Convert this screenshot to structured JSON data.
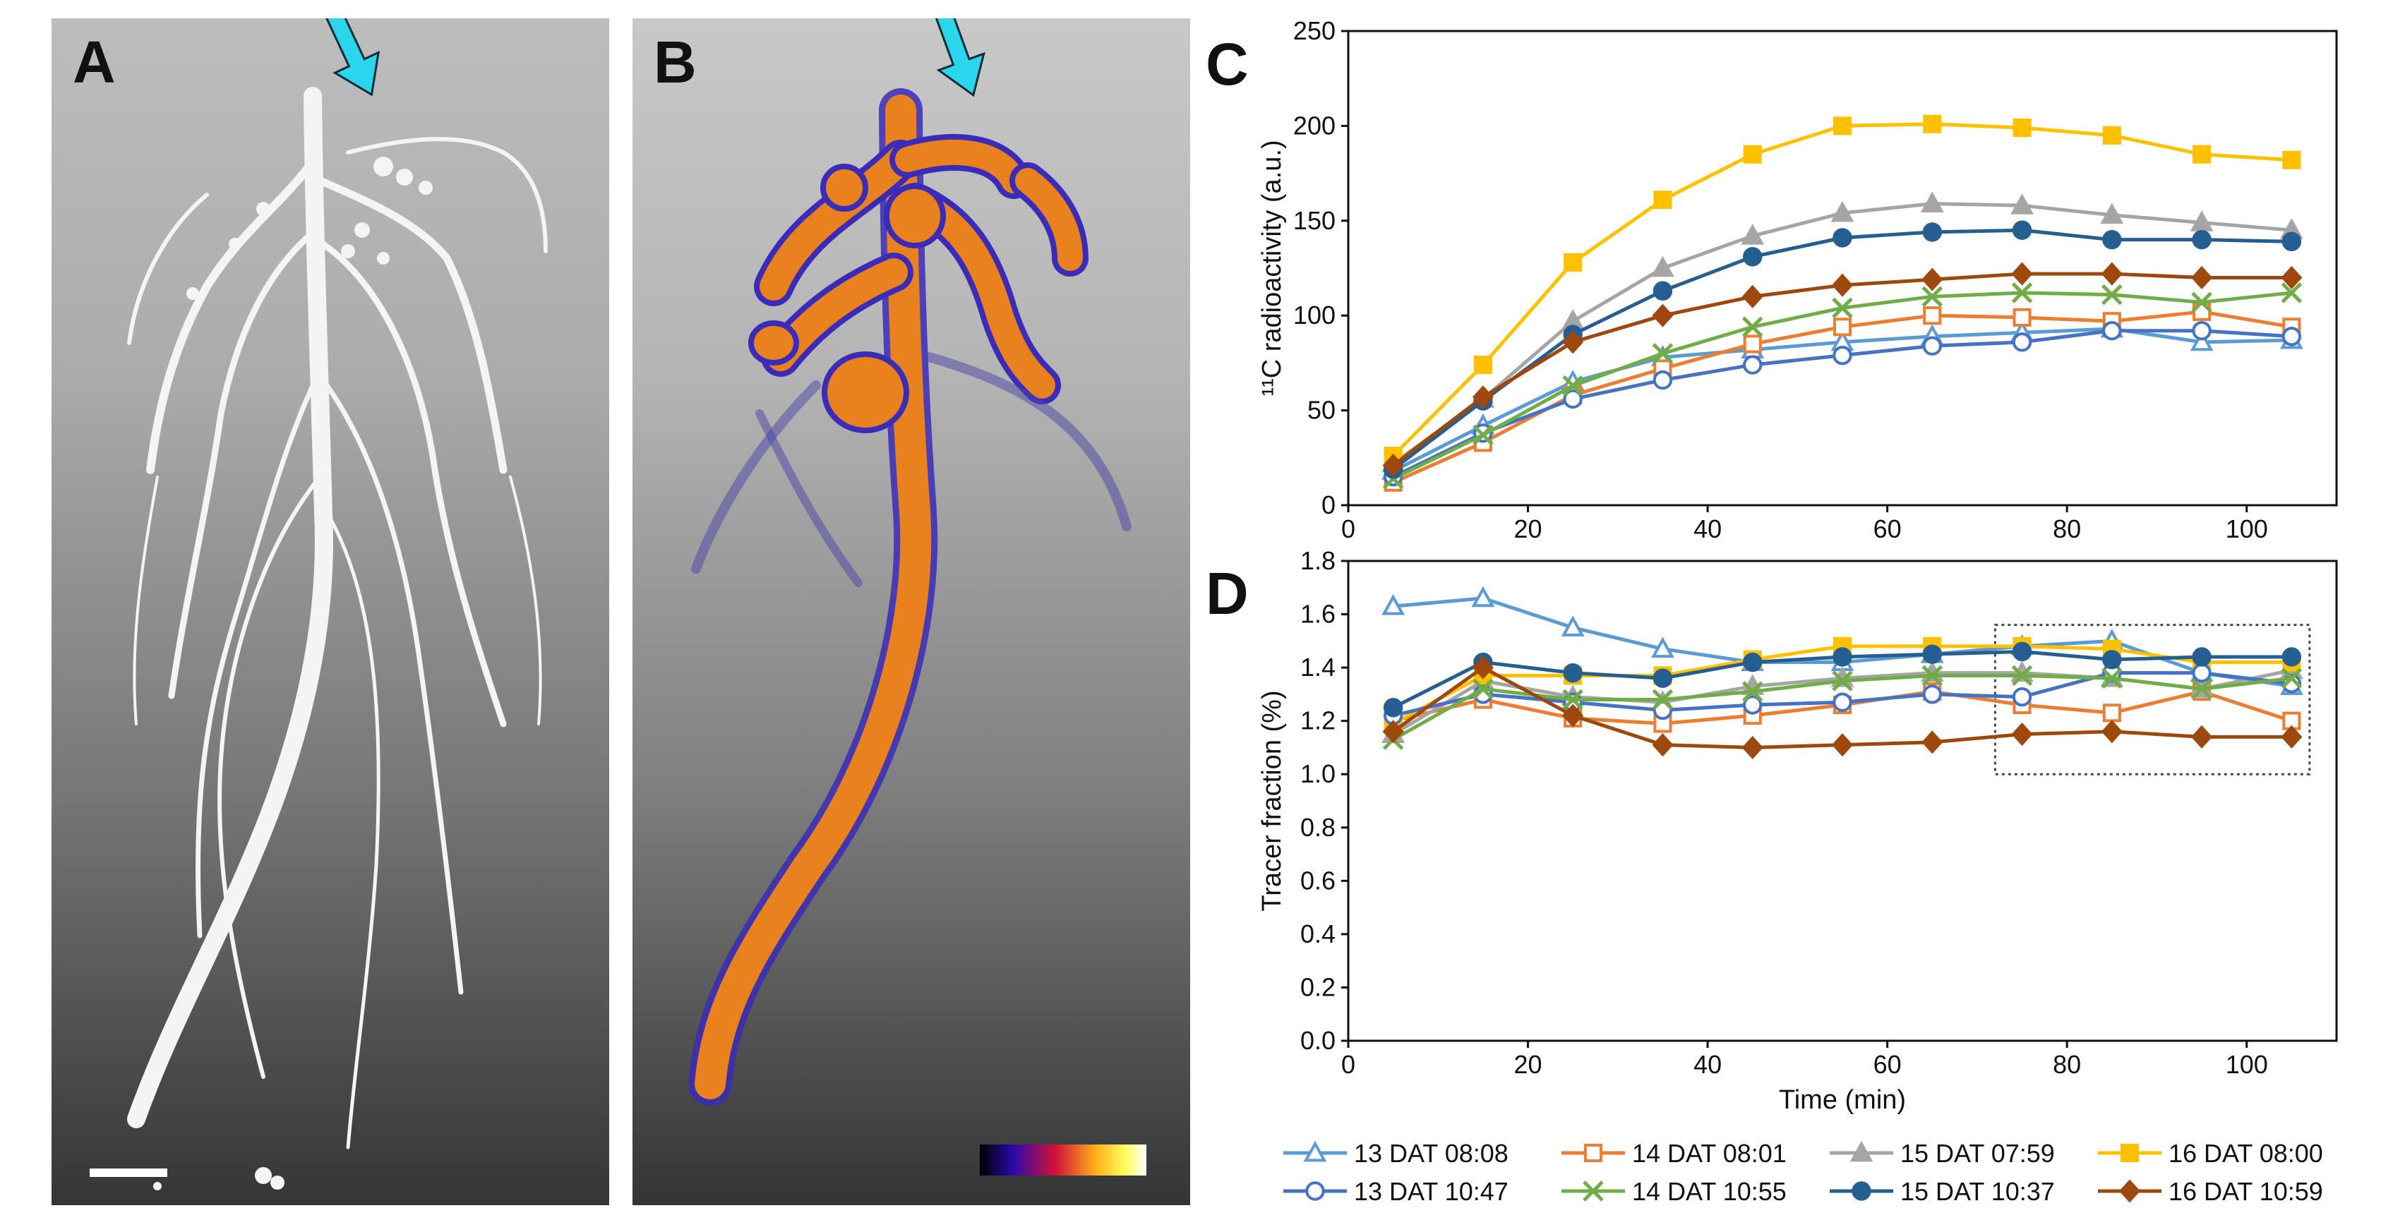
{
  "panels": {
    "a": {
      "label": "A"
    },
    "b": {
      "label": "B"
    },
    "c": {
      "label": "C"
    },
    "d": {
      "label": "D"
    }
  },
  "colors": {
    "arrow": "#29d6ec",
    "series_colors": [
      "#5b9bd5",
      "#ed7d31",
      "#a5a5a5",
      "#ffc000",
      "#4472c4",
      "#70ad47",
      "#255e91",
      "#9e480e"
    ]
  },
  "chart_data": [
    {
      "type": "line",
      "panel": "C",
      "title": "",
      "xlabel": "",
      "ylabel": "¹¹C radioactivity (a.u.)",
      "xlim": [
        0,
        110
      ],
      "ylim": [
        0,
        250
      ],
      "xticks": [
        0,
        20,
        40,
        60,
        80,
        100
      ],
      "yticks": [
        0,
        50,
        100,
        150,
        200,
        250
      ],
      "x": [
        5,
        15,
        25,
        35,
        45,
        55,
        65,
        75,
        85,
        95,
        105
      ],
      "series": [
        {
          "name": "13 DAT 08:08",
          "marker": "triangle-open",
          "values": [
            18,
            42,
            65,
            78,
            82,
            86,
            89,
            91,
            93,
            86,
            87
          ]
        },
        {
          "name": "14 DAT 08:01",
          "marker": "square-open",
          "values": [
            12,
            33,
            58,
            72,
            85,
            94,
            100,
            99,
            97,
            102,
            94
          ]
        },
        {
          "name": "15 DAT 07:59",
          "marker": "triangle",
          "values": [
            22,
            56,
            97,
            125,
            142,
            154,
            159,
            158,
            153,
            149,
            145
          ]
        },
        {
          "name": "16 DAT 08:00",
          "marker": "square",
          "values": [
            26,
            74,
            128,
            161,
            185,
            200,
            201,
            199,
            195,
            185,
            182
          ]
        },
        {
          "name": "13 DAT 10:47",
          "marker": "circle-open",
          "values": [
            15,
            38,
            56,
            66,
            74,
            79,
            84,
            86,
            92,
            92,
            89
          ]
        },
        {
          "name": "14 DAT 10:55",
          "marker": "x",
          "values": [
            14,
            37,
            63,
            80,
            94,
            104,
            110,
            112,
            111,
            107,
            112
          ]
        },
        {
          "name": "15 DAT 10:37",
          "marker": "circle",
          "values": [
            19,
            55,
            90,
            113,
            131,
            141,
            144,
            145,
            140,
            140,
            139
          ]
        },
        {
          "name": "16 DAT 10:59",
          "marker": "diamond",
          "values": [
            21,
            57,
            86,
            100,
            110,
            116,
            119,
            122,
            122,
            120,
            120
          ]
        }
      ]
    },
    {
      "type": "line",
      "panel": "D",
      "title": "",
      "xlabel": "Time (min)",
      "ylabel": "Tracer fraction (%)",
      "xlim": [
        0,
        110
      ],
      "ylim": [
        0.0,
        1.8
      ],
      "xticks": [
        0,
        20,
        40,
        60,
        80,
        100
      ],
      "yticks": [
        0.0,
        0.2,
        0.4,
        0.6,
        0.8,
        1.0,
        1.2,
        1.4,
        1.6,
        1.8
      ],
      "highlight_box": {
        "x": [
          72,
          107
        ],
        "y": [
          1.0,
          1.56
        ]
      },
      "x": [
        5,
        15,
        25,
        35,
        45,
        55,
        65,
        75,
        85,
        95,
        105
      ],
      "series": [
        {
          "name": "13 DAT 08:08",
          "marker": "triangle-open",
          "values": [
            1.63,
            1.66,
            1.55,
            1.47,
            1.42,
            1.42,
            1.45,
            1.48,
            1.5,
            1.38,
            1.33
          ]
        },
        {
          "name": "14 DAT 08:01",
          "marker": "square-open",
          "values": [
            1.2,
            1.28,
            1.21,
            1.19,
            1.22,
            1.26,
            1.31,
            1.26,
            1.23,
            1.31,
            1.2
          ]
        },
        {
          "name": "15 DAT 07:59",
          "marker": "triangle",
          "values": [
            1.15,
            1.35,
            1.29,
            1.27,
            1.33,
            1.36,
            1.38,
            1.38,
            1.36,
            1.32,
            1.39
          ]
        },
        {
          "name": "16 DAT 08:00",
          "marker": "square",
          "values": [
            1.19,
            1.37,
            1.37,
            1.37,
            1.43,
            1.48,
            1.48,
            1.48,
            1.47,
            1.42,
            1.42
          ]
        },
        {
          "name": "13 DAT 10:47",
          "marker": "circle-open",
          "values": [
            1.22,
            1.3,
            1.27,
            1.24,
            1.26,
            1.27,
            1.3,
            1.29,
            1.38,
            1.38,
            1.34
          ]
        },
        {
          "name": "14 DAT 10:55",
          "marker": "x",
          "values": [
            1.13,
            1.32,
            1.28,
            1.28,
            1.31,
            1.35,
            1.37,
            1.37,
            1.36,
            1.32,
            1.36
          ]
        },
        {
          "name": "15 DAT 10:37",
          "marker": "circle",
          "values": [
            1.25,
            1.42,
            1.38,
            1.36,
            1.42,
            1.44,
            1.45,
            1.46,
            1.43,
            1.44,
            1.44
          ]
        },
        {
          "name": "16 DAT 10:59",
          "marker": "diamond",
          "values": [
            1.16,
            1.4,
            1.22,
            1.11,
            1.1,
            1.11,
            1.12,
            1.15,
            1.16,
            1.14,
            1.14
          ]
        }
      ]
    }
  ]
}
